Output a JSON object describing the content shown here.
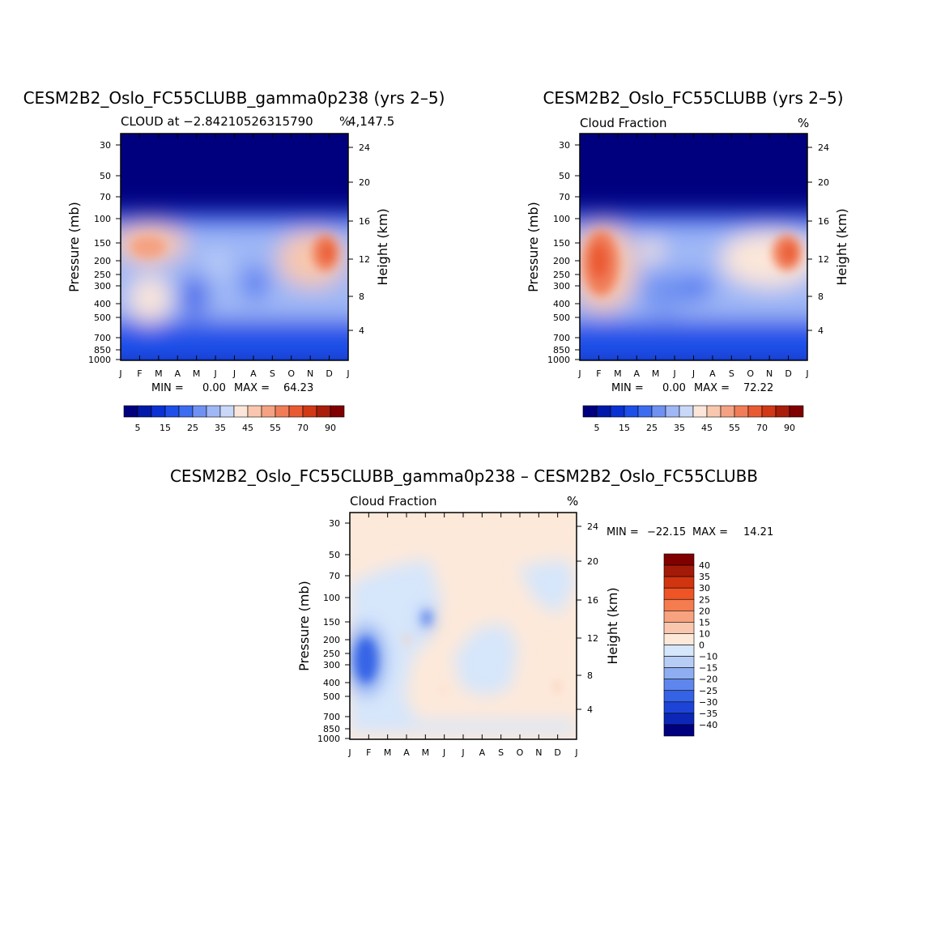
{
  "chart_data": [
    {
      "type": "heatmap",
      "title": "CESM2B2_Oslo_FC55CLUBB_gamma0p238 (yrs 2–5)",
      "subtitle_left": "CLOUD at −2.84210526315790",
      "subtitle_right": "4,147.5",
      "units": "%",
      "ylabel": "Pressure (mb)",
      "y2label": "Height (km)",
      "x_ticks": [
        "J",
        "F",
        "M",
        "A",
        "M",
        "J",
        "J",
        "A",
        "S",
        "O",
        "N",
        "D",
        "J"
      ],
      "pressure_ticks": [
        "30",
        "50",
        "70",
        "100",
        "150",
        "200",
        "250",
        "300",
        "400",
        "500",
        "700",
        "850",
        "1000"
      ],
      "height_ticks": [
        "24",
        "20",
        "16",
        "12",
        "8",
        "4"
      ],
      "min_label": "MIN =",
      "min_value": "0.00",
      "max_label": "MAX =",
      "max_value": "64.23",
      "colorbar_labels": [
        "5",
        "15",
        "25",
        "35",
        "45",
        "55",
        "70",
        "90"
      ],
      "levels": [
        5,
        10,
        15,
        20,
        25,
        30,
        35,
        40,
        45,
        50,
        55,
        60,
        70,
        80,
        90
      ],
      "description": "Cloud fraction, monthly climatology; high cloud maxima near 150–250 mb in Feb (~50) and Dec (~64)"
    },
    {
      "type": "heatmap",
      "title": "CESM2B2_Oslo_FC55CLUBB (yrs 2–5)",
      "subtitle_left": "Cloud Fraction",
      "units": "%",
      "ylabel": "Pressure (mb)",
      "y2label": "Height (km)",
      "x_ticks": [
        "J",
        "F",
        "M",
        "A",
        "M",
        "J",
        "J",
        "A",
        "S",
        "O",
        "N",
        "D",
        "J"
      ],
      "pressure_ticks": [
        "30",
        "50",
        "70",
        "100",
        "150",
        "200",
        "250",
        "300",
        "400",
        "500",
        "700",
        "850",
        "1000"
      ],
      "height_ticks": [
        "24",
        "20",
        "16",
        "12",
        "8",
        "4"
      ],
      "min_label": "MIN =",
      "min_value": "0.00",
      "max_label": "MAX =",
      "max_value": "72.22",
      "colorbar_labels": [
        "5",
        "15",
        "25",
        "35",
        "45",
        "55",
        "70",
        "90"
      ],
      "levels": [
        5,
        10,
        15,
        20,
        25,
        30,
        35,
        40,
        45,
        50,
        55,
        60,
        70,
        80,
        90
      ]
    },
    {
      "type": "heatmap",
      "title": "CESM2B2_Oslo_FC55CLUBB_gamma0p238 – CESM2B2_Oslo_FC55CLUBB",
      "subtitle_left": "Cloud Fraction",
      "units": "%",
      "ylabel": "Pressure (mb)",
      "y2label": "Height (km)",
      "x_ticks": [
        "J",
        "F",
        "M",
        "A",
        "M",
        "J",
        "J",
        "A",
        "S",
        "O",
        "N",
        "D",
        "J"
      ],
      "pressure_ticks": [
        "30",
        "50",
        "70",
        "100",
        "150",
        "200",
        "250",
        "300",
        "400",
        "500",
        "700",
        "850",
        "1000"
      ],
      "height_ticks": [
        "24",
        "20",
        "16",
        "12",
        "8",
        "4"
      ],
      "min_label": "MIN =",
      "min_value": "−22.15",
      "max_label": "MAX =",
      "max_value": "14.21",
      "colorbar_labels": [
        "40",
        "35",
        "30",
        "25",
        "20",
        "15",
        "10",
        "0",
        "−10",
        "−15",
        "−20",
        "−25",
        "−30",
        "−35",
        "−40"
      ],
      "levels": [
        -40,
        -35,
        -30,
        -25,
        -20,
        -15,
        -10,
        0,
        10,
        15,
        20,
        25,
        30,
        35,
        40
      ]
    }
  ],
  "colors": {
    "abs_scale": [
      "#00007f",
      "#0019a8",
      "#0a32d2",
      "#1e4fe8",
      "#3c6cf0",
      "#6f92f2",
      "#9fb7f5",
      "#c9d8f8",
      "#fbe6d9",
      "#f8c7ad",
      "#f4a283",
      "#f07d58",
      "#ea5a32",
      "#d13816",
      "#a81e0a",
      "#800000"
    ],
    "diff_scale": [
      "#800000",
      "#a31a08",
      "#d1350f",
      "#ee5426",
      "#f57c4e",
      "#f7a37f",
      "#f9c7ae",
      "#fde9da",
      "#d6e6fb",
      "#b7cdf6",
      "#8eaef1",
      "#5f86ec",
      "#3563e6",
      "#1d44d6",
      "#0c27b8",
      "#00007f"
    ]
  }
}
